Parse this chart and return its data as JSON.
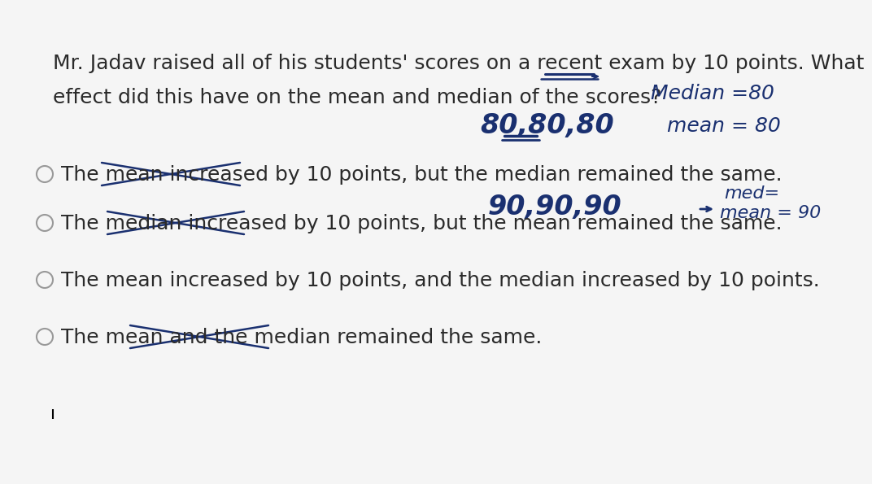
{
  "bg_color": "#f5f5f5",
  "text_color": "#2a2a2a",
  "handwritten_color": "#1a3070",
  "question_line1": "Mr. Jadav raised all of his students' scores on a recent exam by 10 points. What",
  "question_line2": "effect did this have on the mean and median of the scores?",
  "handwritten_numbers1": "80,80,80",
  "handwritten_median": "Median =80",
  "handwritten_mean": "mean = 80",
  "handwritten_numbers2": "90,90,90",
  "handwritten_med_eq": "med=",
  "handwritten_mean_eq": "mean = 90",
  "choice1": "The mean increased by 10 points, but the median remained the same.",
  "choice2": "The median increased by 10 points, but the mean remained the same.",
  "choice3": "The mean increased by 10 points, and the median increased by 10 points.",
  "choice4": "The mean and the median remained the same.",
  "font_size_main": 18,
  "font_size_hand": 20,
  "font_size_hand_small": 16
}
